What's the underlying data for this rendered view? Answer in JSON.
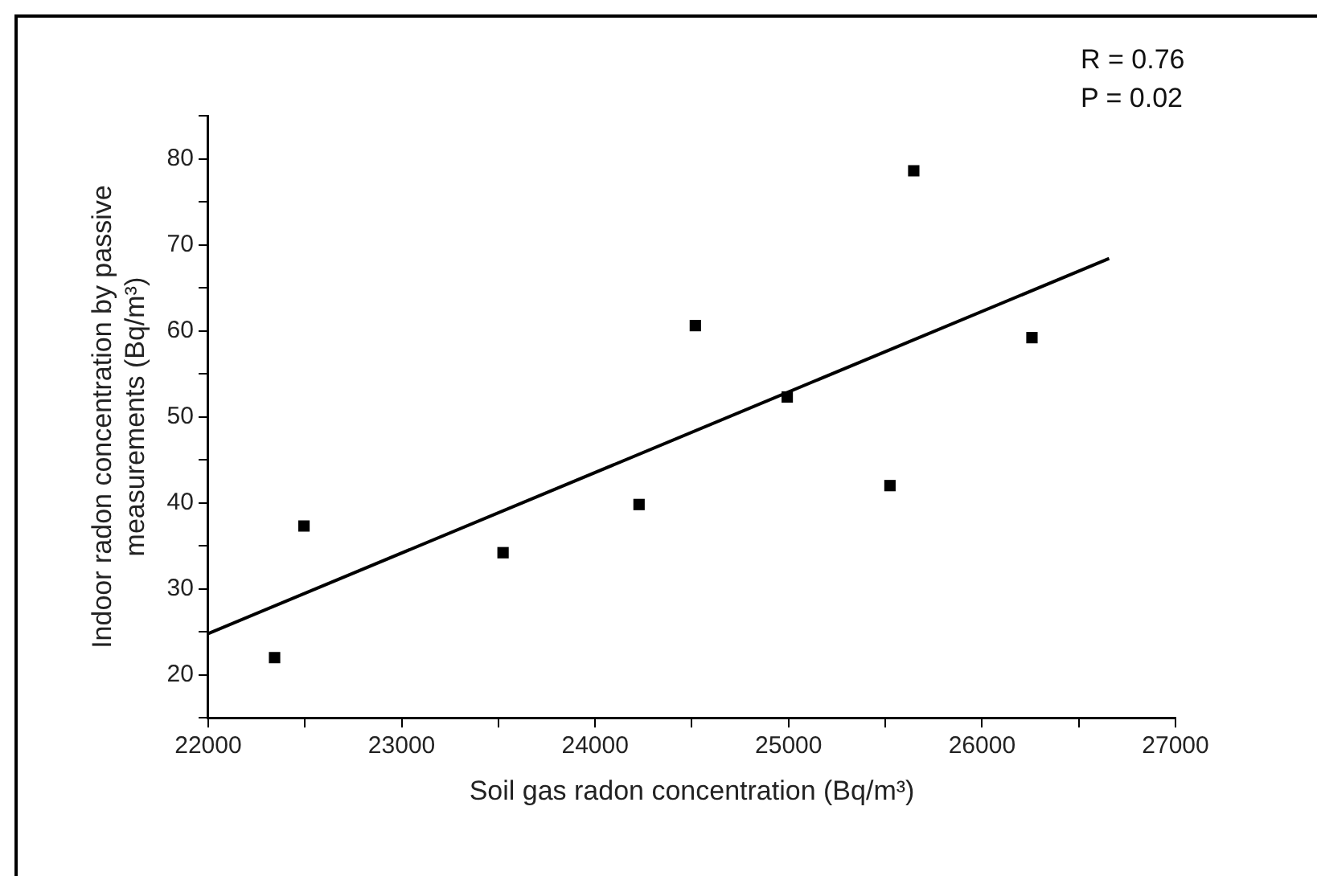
{
  "chart_data": {
    "type": "scatter",
    "xlabel": "Soil gas radon concentration (Bq/m³)",
    "ylabel": "Indoor radon concentration by passive measurements (Bq/m³)",
    "annotations": [
      "R = 0.76",
      "P = 0.02"
    ],
    "series": [
      {
        "color": "#000000",
        "marker": "square",
        "x": [
          22343,
          22495,
          23524,
          24227,
          24518,
          24993,
          25524,
          25647,
          26258
        ],
        "values": [
          22.0,
          37.3,
          34.2,
          39.8,
          60.6,
          52.3,
          42.0,
          78.6,
          59.2
        ]
      },
      {
        "type": "line",
        "color": "#000000",
        "marker": "none",
        "line_style": "solid",
        "x": [
          22000,
          26657
        ],
        "values": [
          24.8,
          68.4
        ]
      }
    ],
    "xlim": [
      22000,
      27000
    ],
    "xticks": [
      22000,
      {
        "value": 22500,
        "label": null
      },
      23000,
      {
        "value": 23500,
        "label": null
      },
      24000,
      {
        "value": 24500,
        "label": null
      },
      25000,
      {
        "value": 25500,
        "label": null
      },
      26000,
      {
        "value": 26500,
        "label": null
      },
      27000
    ],
    "ylim": [
      15,
      85
    ],
    "yticks": [
      {
        "value": 15,
        "label": null
      },
      20,
      {
        "value": 25,
        "label": null
      },
      30,
      {
        "value": 35,
        "label": null
      },
      40,
      {
        "value": 45,
        "label": null
      },
      50,
      {
        "value": 55,
        "label": null
      },
      60,
      {
        "value": 65,
        "label": null
      },
      70,
      {
        "value": 75,
        "label": null
      },
      80,
      {
        "value": 85,
        "label": null
      }
    ],
    "grid": false,
    "legend": false
  }
}
